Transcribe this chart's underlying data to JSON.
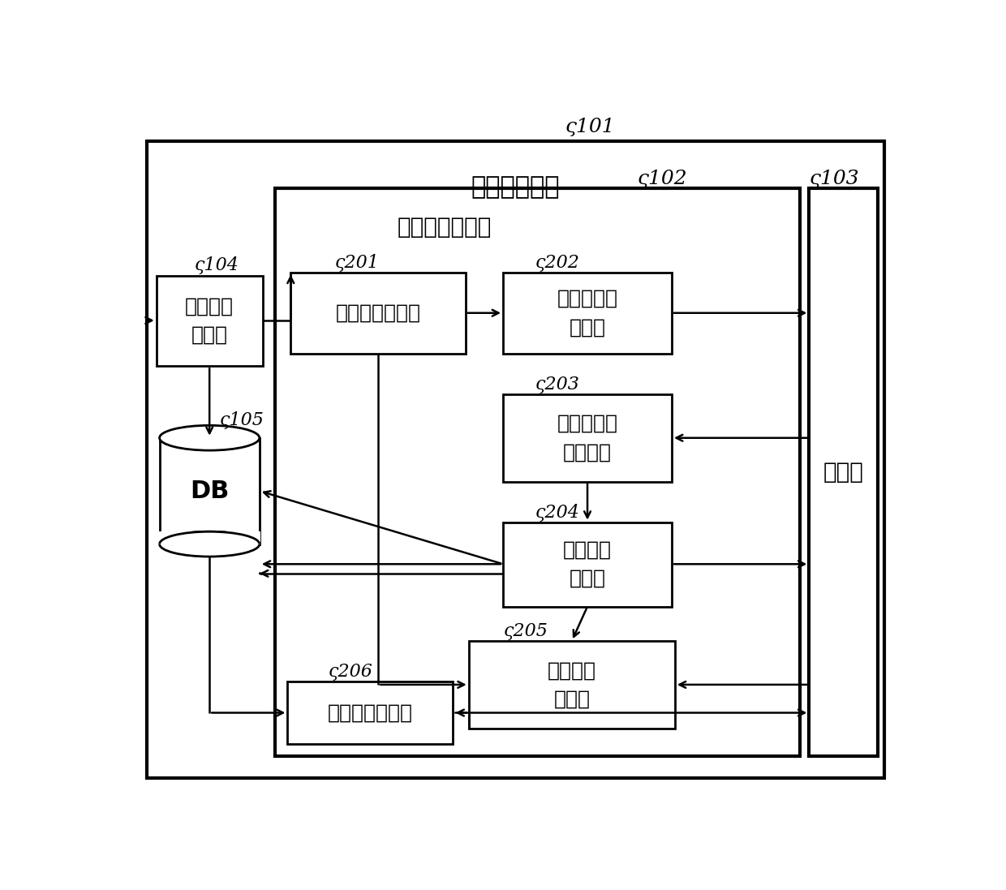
{
  "fig_width": 12.4,
  "fig_height": 10.97,
  "bg_color": "#ffffff",
  "label_101": "能量管理系统",
  "label_102": "流通计划制作部",
  "label_103": "收发部",
  "label_104_text": "运用计划\n制作部",
  "label_105_text": "DB",
  "label_201_text": "流通请求制作部",
  "label_202_text": "流通必要度\n决定部",
  "label_203_text": "流通交涉对\n象决定部",
  "label_204_text": "流通响应\n决定部",
  "label_205_text": "流通计划\n决定部",
  "label_206_text": "流通请求调整部",
  "ref_101": "101",
  "ref_102": "102",
  "ref_103": "103",
  "ref_104": "104",
  "ref_105": "105",
  "ref_201": "201",
  "ref_202": "202",
  "ref_203": "203",
  "ref_204": "204",
  "ref_205": "205",
  "ref_206": "206"
}
